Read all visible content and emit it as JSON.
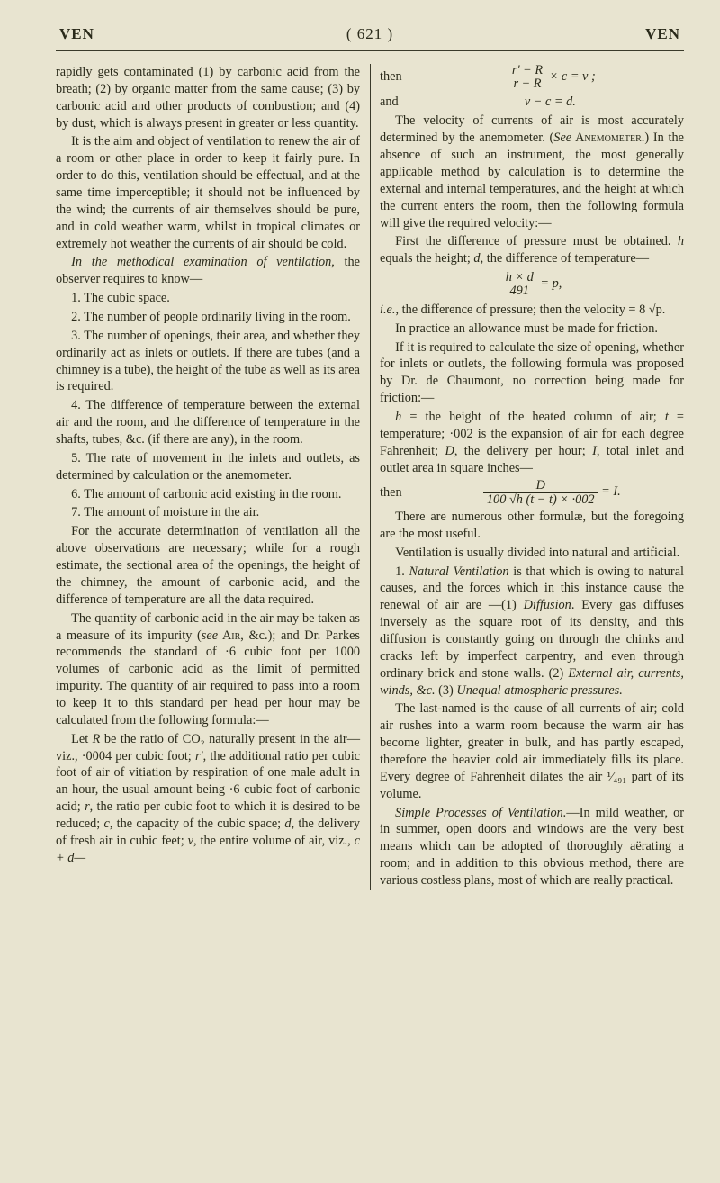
{
  "header": {
    "left": "VEN",
    "center": "( 621 )",
    "right": "VEN"
  },
  "col1": {
    "p1": "rapidly gets contaminated (1) by carbonic acid from the breath; (2) by organic matter from the same cause; (3) by carbonic acid and other products of combustion; and (4) by dust, which is always present in greater or less quantity.",
    "p2": "It is the aim and object of ventilation to renew the air of a room or other place in order to keep it fairly pure. In order to do this, ventilation should be effectual, and at the same time imperceptible; it should not be influenced by the wind; the currents of air themselves should be pure, and in cold weather warm, whilst in tropical climates or extremely hot weather the currents of air should be cold.",
    "p3_ital": "In the methodical examination of ventilation",
    "p3_rest": ", the observer requires to know—",
    "l1": "1. The cubic space.",
    "l2": "2. The number of people ordinarily living in the room.",
    "l3": "3. The number of openings, their area, and whether they ordinarily act as inlets or outlets. If there are tubes (and a chimney is a tube), the height of the tube as well as its area is required.",
    "l4": "4. The difference of temperature between the external air and the room, and the difference of temperature in the shafts, tubes, &c. (if there are any), in the room.",
    "l5": "5. The rate of movement in the inlets and outlets, as determined by calculation or the anemometer.",
    "l6": "6. The amount of carbonic acid existing in the room.",
    "l7": "7. The amount of moisture in the air.",
    "p4": "For the accurate determination of ventilation all the above observations are necessary; while for a rough estimate, the sectional area of the openings, the height of the chimney, the amount of carbonic acid, and the difference of temperature are all the data required.",
    "p5a": "The quantity of carbonic acid in the air may be taken as a measure of its impurity (",
    "p5_see": "see",
    "p5_air": " Air",
    "p5b": ", &c.); and Dr. Parkes recommends the standard of ·6 cubic foot per 1000 volumes of carbonic acid as the limit of permitted impurity. The quantity of air required to pass into a room to keep it to this standard per head per hour may be calculated from the following formula:—",
    "p6a": "Let ",
    "p6R": "R",
    "p6b": " be the ratio of CO₂ naturally present in the air—viz., ·0004 per cubic foot; ",
    "p6rp": "r′",
    "p6c": ", the additional ratio per cubic foot of air of vitiation by respiration of one male adult in an hour, the usual amount being ·6 cubic foot of carbonic acid; ",
    "p6r": "r",
    "p6d": ", the ratio per cubic foot to which it is desired to be reduced; ",
    "p6cc": "c",
    "p6e": ", the capacity of the cubic space; ",
    "p6d2": "d",
    "p6f": ", the delivery of fresh air in cubic feet; ",
    "p6v": "v",
    "p6g": ", the entire volume of air, viz., ",
    "p6eq": "c + d—"
  },
  "col2": {
    "then": "then",
    "eq1_top": "r′ − R",
    "eq1_bot": "r − R",
    "eq1_tail": " × c = v ;",
    "and": "and",
    "eq2": "v − c = d.",
    "p1a": "The velocity of currents of air is most accurately determined by the anemometer. (",
    "p1_see": "See",
    "p1_anem": " Anemometer",
    "p1b": ".) In the absence of such an instrument, the most generally applicable method by calculation is to determine the external and internal temperatures, and the height at which the current enters the room, then the following formula will give the required velocity:—",
    "p2a": "First the difference of pressure must be obtained. ",
    "p2h": "h",
    "p2b": " equals the height; ",
    "p2d": "d",
    "p2c": ", the difference of temperature—",
    "f1_top": "h × d",
    "f1_bot": "491",
    "f1_tail": " = p,",
    "p3a": "i.e.",
    "p3b": ", the difference of pressure; then the velocity = 8 √p.",
    "p4": "In practice an allowance must be made for friction.",
    "p5": "If it is required to calculate the size of opening, whether for inlets or outlets, the following formula was proposed by Dr. de Chaumont, no correction being made for friction:—",
    "p6a": "h",
    "p6b": " = the height of the heated column of air; ",
    "p6c": "t",
    "p6d": " = temperature; ·002 is the expansion of air for each degree Fahrenheit; ",
    "p6e": "D",
    "p6f": ", the delivery per hour; ",
    "p6g": "I",
    "p6h": ", total inlet and outlet area in square inches—",
    "then2": "then",
    "f2_top": "D",
    "f2_bot": "100 √h (t − t) × ·002",
    "f2_tail": " = I.",
    "p7": "There are numerous other formulæ, but the foregoing are the most useful.",
    "p8": "Ventilation is usually divided into natural and artificial.",
    "p9a": "1. ",
    "p9_nat": "Natural Ventilation",
    "p9b": " is that which is owing to natural causes, and the forces which in this instance cause the renewal of air are —(1) ",
    "p9_diff": "Diffusion",
    "p9c": ". Every gas diffuses inversely as the square root of its density, and this diffusion is constantly going on through the chinks and cracks left by imperfect carpentry, and even through ordinary brick and stone walls. (2) ",
    "p9_ext": "External air, currents, winds, &c.",
    "p9d": " (3) ",
    "p9_un": "Unequal atmospheric pressures.",
    "p10": "The last-named is the cause of all currents of air; cold air rushes into a warm room because the warm air has become lighter, greater in bulk, and has partly escaped, therefore the heavier cold air immediately fills its place. Every degree of Fahrenheit dilates the air ¹⁄₄₉₁ part of its volume.",
    "p11a": "Simple Processes of Ventilation.",
    "p11b": "—In mild weather, or in summer, open doors and windows are the very best means which can be adopted of thoroughly aërating a room; and in addition to this obvious method, there are various costless plans, most of which are really practical."
  }
}
